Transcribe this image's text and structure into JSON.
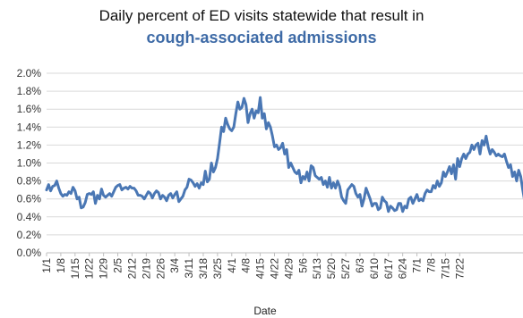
{
  "chart_data": {
    "type": "line",
    "title": "Daily percent of ED visits statewide that result in",
    "subtitle": "cough-associated admissions",
    "xlabel": "Date",
    "ylabel": "",
    "ylim": [
      0,
      2.0
    ],
    "y_ticks": [
      "0.0%",
      "0.2%",
      "0.4%",
      "0.6%",
      "0.8%",
      "1.0%",
      "1.2%",
      "1.4%",
      "1.6%",
      "1.8%",
      "2.0%"
    ],
    "x_tick_labels": [
      "1/1",
      "1/8",
      "1/15",
      "1/22",
      "1/29",
      "2/5",
      "2/12",
      "2/19",
      "2/26",
      "3/4",
      "3/11",
      "3/18",
      "3/25",
      "4/1",
      "4/8",
      "4/15",
      "4/22",
      "4/29",
      "5/6",
      "5/13",
      "5/20",
      "5/27",
      "6/3",
      "6/10",
      "6/17",
      "6/24",
      "7/1",
      "7/8",
      "7/15",
      "7/22"
    ],
    "grid": true,
    "legend": "none",
    "series_color": "#4a77b4",
    "subtitle_color": "#3d6aa6",
    "series": [
      {
        "values": [
          0.7,
          0.76,
          0.69,
          0.74,
          0.75,
          0.8,
          0.72,
          0.66,
          0.63,
          0.65,
          0.64,
          0.68,
          0.66,
          0.73,
          0.69,
          0.6,
          0.62,
          0.5,
          0.51,
          0.56,
          0.65,
          0.66,
          0.65,
          0.68,
          0.55,
          0.64,
          0.6,
          0.71,
          0.64,
          0.62,
          0.64,
          0.66,
          0.63,
          0.68,
          0.73,
          0.75,
          0.76,
          0.7,
          0.72,
          0.73,
          0.71,
          0.74,
          0.72,
          0.72,
          0.69,
          0.64,
          0.64,
          0.63,
          0.6,
          0.64,
          0.68,
          0.66,
          0.61,
          0.66,
          0.69,
          0.67,
          0.6,
          0.64,
          0.62,
          0.58,
          0.64,
          0.66,
          0.61,
          0.65,
          0.68,
          0.57,
          0.6,
          0.63,
          0.7,
          0.73,
          0.82,
          0.81,
          0.78,
          0.74,
          0.77,
          0.72,
          0.78,
          0.76,
          0.91,
          0.79,
          0.82,
          1.0,
          0.9,
          0.95,
          1.05,
          1.22,
          1.4,
          1.35,
          1.5,
          1.43,
          1.38,
          1.36,
          1.4,
          1.55,
          1.68,
          1.6,
          1.62,
          1.72,
          1.65,
          1.45,
          1.55,
          1.6,
          1.5,
          1.58,
          1.56,
          1.73,
          1.5,
          1.55,
          1.38,
          1.45,
          1.4,
          1.3,
          1.18,
          1.2,
          1.15,
          1.17,
          1.22,
          1.1,
          1.15,
          0.95,
          1.0,
          0.95,
          0.9,
          0.88,
          0.92,
          0.78,
          0.85,
          0.82,
          0.9,
          0.8,
          0.97,
          0.95,
          0.86,
          0.84,
          0.82,
          0.84,
          0.76,
          0.8,
          0.73,
          0.84,
          0.72,
          0.78,
          0.72,
          0.8,
          0.74,
          0.62,
          0.58,
          0.55,
          0.7,
          0.73,
          0.76,
          0.74,
          0.66,
          0.62,
          0.65,
          0.52,
          0.6,
          0.72,
          0.66,
          0.6,
          0.52,
          0.55,
          0.55,
          0.48,
          0.5,
          0.62,
          0.58,
          0.56,
          0.46,
          0.52,
          0.5,
          0.47,
          0.48,
          0.55,
          0.55,
          0.46,
          0.52,
          0.5,
          0.6,
          0.62,
          0.55,
          0.6,
          0.65,
          0.58,
          0.6,
          0.58,
          0.66,
          0.7,
          0.68,
          0.68,
          0.75,
          0.72,
          0.8,
          0.74,
          0.78,
          0.9,
          0.85,
          0.9,
          0.96,
          0.88,
          0.98,
          0.82,
          1.05,
          0.96,
          1.05,
          1.1,
          1.05,
          1.1,
          1.12,
          1.2,
          1.15,
          1.2,
          1.22,
          1.1,
          1.25,
          1.2,
          1.3,
          1.18,
          1.1,
          1.15,
          1.12,
          1.08,
          1.1,
          1.08,
          1.07,
          1.1,
          1.02,
          0.95,
          0.98,
          0.85,
          0.9,
          0.8,
          0.92,
          0.85,
          0.7,
          0.57
        ]
      }
    ]
  }
}
